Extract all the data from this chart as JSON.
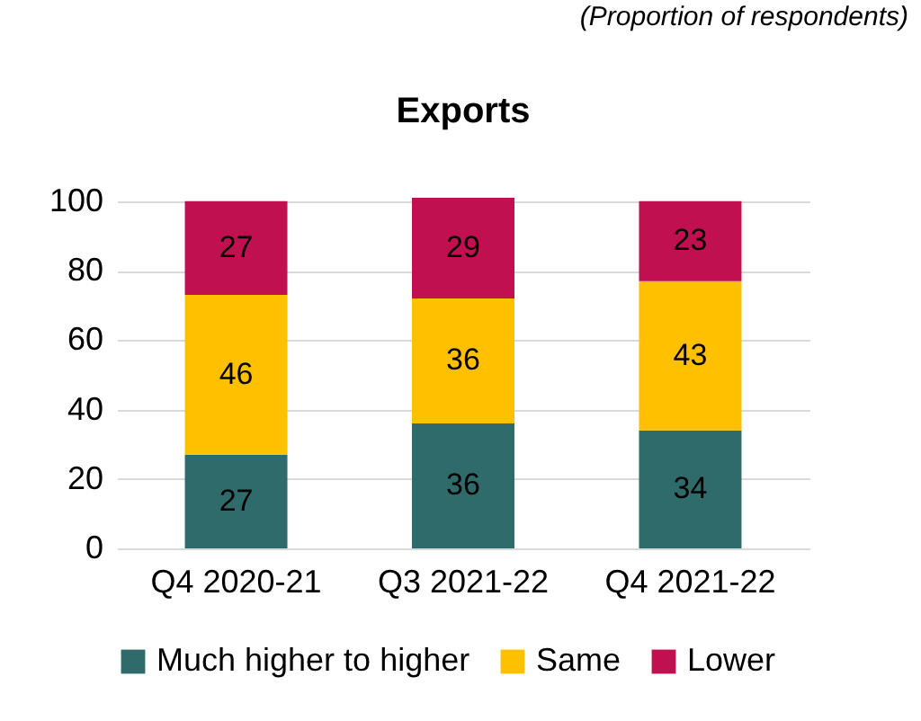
{
  "chart_data": {
    "type": "bar",
    "title": "Exports",
    "annotations": [
      "(Proportion of respondents)"
    ],
    "categories": [
      "Q4 2020-21",
      "Q3 2021-22",
      "Q4 2021-22"
    ],
    "stacked": true,
    "series": [
      {
        "name": "Much higher to higher",
        "color": "#2e6b6a",
        "values": [
          27,
          36,
          34
        ]
      },
      {
        "name": "Same",
        "color": "#ffc000",
        "values": [
          46,
          36,
          43
        ]
      },
      {
        "name": "Lower",
        "color": "#c0104f",
        "values": [
          27,
          29,
          23
        ]
      }
    ],
    "ylim": [
      0,
      101
    ],
    "yticks": [
      0,
      20,
      40,
      60,
      80,
      100
    ],
    "grid": "y",
    "legend": "bottom",
    "data_labels": true
  }
}
